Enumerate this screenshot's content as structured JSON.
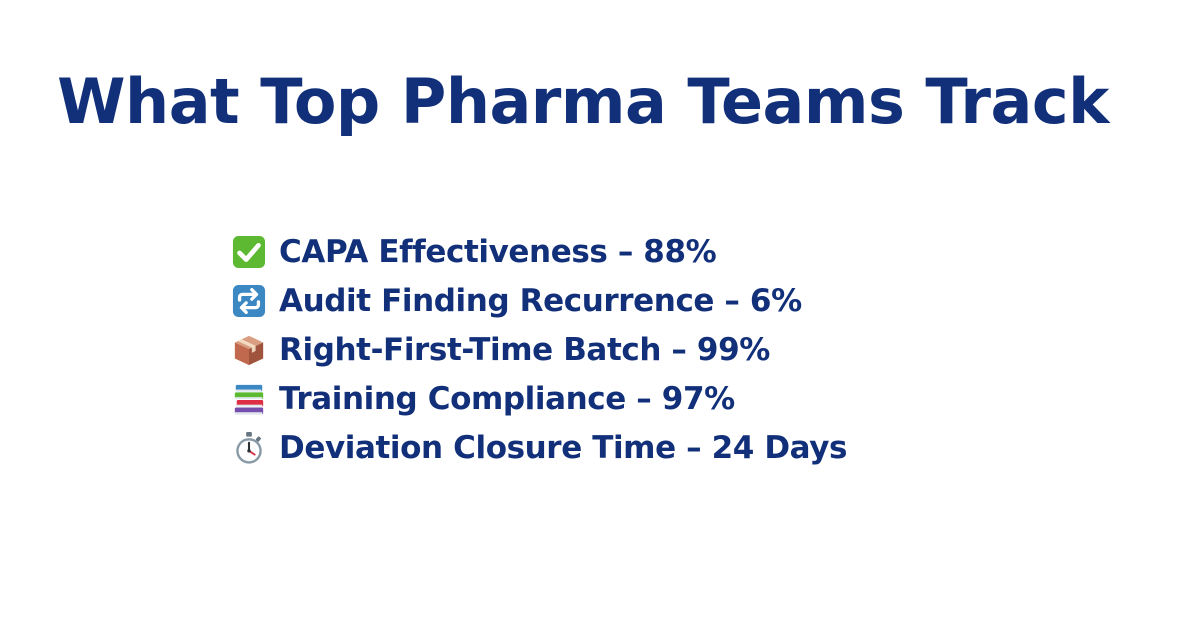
{
  "title": "What Top Pharma Teams Track",
  "metrics": [
    {
      "icon": "check-mark-button-icon",
      "label": "CAPA Effectiveness – 88%"
    },
    {
      "icon": "repeat-arrows-icon",
      "label": "Audit Finding Recurrence – 6%"
    },
    {
      "icon": "package-box-icon",
      "label": "Right-First-Time Batch – 99%"
    },
    {
      "icon": "stack-of-books-icon",
      "label": "Training Compliance – 97%"
    },
    {
      "icon": "stopwatch-icon",
      "label": "Deviation Closure Time – 24 Days"
    }
  ],
  "colors": {
    "text": "#12307a",
    "background": "#ffffff",
    "check_green": "#5db832",
    "repeat_blue": "#3b88c3",
    "box_brown": "#c1694f"
  }
}
